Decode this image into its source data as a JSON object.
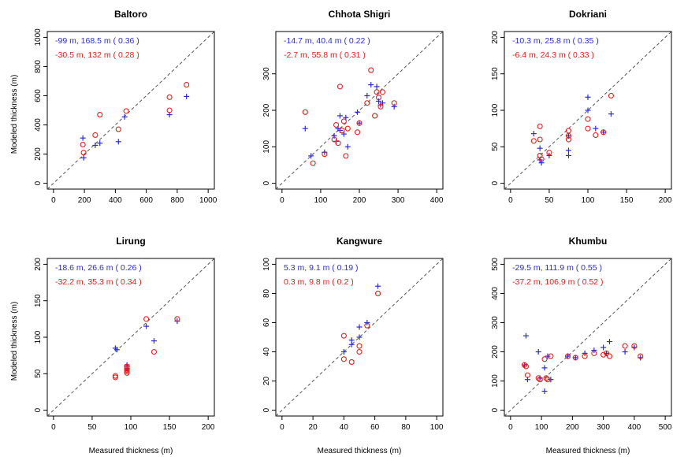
{
  "figure": {
    "xlabel": "Measured thickness (m)",
    "ylabel": "Modeled thickness (m)",
    "colors": {
      "blue": "#2b2bd6",
      "red": "#e02020",
      "axis": "#000000",
      "diagonal": "#555555"
    }
  },
  "chart_data": [
    {
      "type": "scatter",
      "title": "Baltoro",
      "xlim": [
        0,
        1000
      ],
      "ylim": [
        0,
        1000
      ],
      "xticks": [
        0,
        200,
        400,
        600,
        800,
        1000
      ],
      "yticks": [
        0,
        200,
        400,
        600,
        800,
        1000
      ],
      "stats": [
        "-99 m,  168.5 m ( 0.36 )",
        "-30.5 m,  132 m ( 0.28 )"
      ],
      "series": [
        {
          "marker": "plus",
          "color": "#2b2bd6",
          "x": [
            190,
            195,
            270,
            300,
            420,
            460,
            750,
            860
          ],
          "y": [
            310,
            175,
            260,
            275,
            285,
            455,
            470,
            595
          ]
        },
        {
          "marker": "circle",
          "color": "#e02020",
          "x": [
            190,
            195,
            270,
            300,
            420,
            470,
            750,
            750,
            860
          ],
          "y": [
            265,
            210,
            330,
            470,
            370,
            495,
            590,
            500,
            675
          ]
        }
      ]
    },
    {
      "type": "scatter",
      "title": "Chhota Shigri",
      "xlim": [
        0,
        400
      ],
      "ylim": [
        0,
        400
      ],
      "xticks": [
        0,
        100,
        200,
        300,
        400
      ],
      "yticks": [
        0,
        100,
        200,
        300
      ],
      "stats": [
        "-14.7 m,  40.4 m ( 0.22 )",
        "-2.7 m,  55.8 m ( 0.31 )"
      ],
      "series": [
        {
          "marker": "plus",
          "color": "#2b2bd6",
          "x": [
            60,
            75,
            110,
            135,
            140,
            145,
            150,
            150,
            160,
            165,
            170,
            195,
            200,
            220,
            230,
            245,
            250,
            255,
            260,
            290
          ],
          "y": [
            150,
            75,
            85,
            130,
            115,
            150,
            185,
            145,
            135,
            180,
            100,
            195,
            165,
            240,
            270,
            265,
            225,
            215,
            220,
            210
          ]
        },
        {
          "marker": "circle",
          "color": "#e02020",
          "x": [
            60,
            80,
            110,
            135,
            140,
            145,
            150,
            155,
            160,
            165,
            170,
            195,
            200,
            220,
            230,
            240,
            245,
            250,
            255,
            260,
            290
          ],
          "y": [
            195,
            55,
            80,
            120,
            160,
            110,
            265,
            145,
            170,
            75,
            150,
            140,
            165,
            220,
            310,
            185,
            250,
            235,
            210,
            250,
            220
          ]
        }
      ]
    },
    {
      "type": "scatter",
      "title": "Dokriani",
      "xlim": [
        0,
        200
      ],
      "ylim": [
        0,
        200
      ],
      "xticks": [
        0,
        50,
        100,
        150,
        200
      ],
      "yticks": [
        0,
        50,
        100,
        150,
        200
      ],
      "stats": [
        "-10.3 m,  25.8 m ( 0.35 )",
        "-6.4 m,  24.3 m ( 0.33 )"
      ],
      "series": [
        {
          "marker": "plus",
          "color": "#2b2bd6",
          "x": [
            30,
            38,
            38,
            40,
            50,
            75,
            75,
            75,
            100,
            100,
            110,
            120,
            130
          ],
          "y": [
            68,
            48,
            32,
            28,
            38,
            65,
            45,
            38,
            118,
            100,
            75,
            70,
            95
          ]
        },
        {
          "marker": "circle",
          "color": "#e02020",
          "x": [
            30,
            38,
            38,
            38,
            40,
            50,
            75,
            75,
            75,
            100,
            100,
            110,
            120,
            130
          ],
          "y": [
            58,
            78,
            60,
            38,
            33,
            42,
            72,
            65,
            60,
            88,
            75,
            66,
            70,
            120
          ]
        }
      ]
    },
    {
      "type": "scatter",
      "title": "Lirung",
      "xlim": [
        0,
        200
      ],
      "ylim": [
        0,
        200
      ],
      "xticks": [
        0,
        50,
        100,
        150,
        200
      ],
      "yticks": [
        0,
        50,
        100,
        150,
        200
      ],
      "stats": [
        "-18.6 m,  26.6 m ( 0.26 )",
        "-32.2 m,  35.3 m ( 0.34 )"
      ],
      "series": [
        {
          "marker": "plus",
          "color": "#2b2bd6",
          "x": [
            80,
            82,
            95,
            95,
            95,
            95,
            120,
            130,
            160
          ],
          "y": [
            85,
            83,
            62,
            60,
            57,
            55,
            115,
            95,
            122
          ]
        },
        {
          "marker": "circle",
          "color": "#e02020",
          "x": [
            80,
            80,
            95,
            95,
            95,
            95,
            95,
            120,
            130,
            160
          ],
          "y": [
            47,
            45,
            60,
            57,
            55,
            53,
            51,
            125,
            80,
            125
          ]
        }
      ]
    },
    {
      "type": "scatter",
      "title": "Kangwure",
      "xlim": [
        0,
        100
      ],
      "ylim": [
        0,
        100
      ],
      "xticks": [
        0,
        20,
        40,
        60,
        80,
        100
      ],
      "yticks": [
        0,
        20,
        40,
        60,
        80,
        100
      ],
      "stats": [
        "5.3 m,  9.1 m ( 0.19 )",
        "0.3 m,  9.8 m ( 0.2 )"
      ],
      "series": [
        {
          "marker": "plus",
          "color": "#2b2bd6",
          "x": [
            40,
            45,
            45,
            50,
            50,
            55,
            62
          ],
          "y": [
            40,
            48,
            45,
            57,
            50,
            60,
            85
          ]
        },
        {
          "marker": "circle",
          "color": "#e02020",
          "x": [
            40,
            40,
            45,
            50,
            50,
            55,
            62
          ],
          "y": [
            51,
            35,
            33,
            44,
            40,
            58,
            80
          ]
        }
      ]
    },
    {
      "type": "scatter",
      "title": "Khumbu",
      "xlim": [
        0,
        500
      ],
      "ylim": [
        0,
        500
      ],
      "xticks": [
        0,
        100,
        200,
        300,
        400,
        500
      ],
      "yticks": [
        0,
        100,
        200,
        300,
        400,
        500
      ],
      "stats": [
        "-29.5 m,  111.9 m ( 0.55 )",
        "-37.2 m,  106.9 m ( 0.52 )"
      ],
      "series": [
        {
          "marker": "plus",
          "color": "#2b2bd6",
          "x": [
            45,
            50,
            55,
            90,
            95,
            110,
            110,
            120,
            130,
            185,
            210,
            240,
            270,
            300,
            310,
            320,
            370,
            400,
            420
          ],
          "y": [
            155,
            255,
            105,
            200,
            110,
            145,
            65,
            185,
            105,
            185,
            180,
            195,
            205,
            215,
            195,
            235,
            200,
            215,
            180
          ]
        },
        {
          "marker": "circle",
          "color": "#e02020",
          "x": [
            45,
            50,
            55,
            90,
            95,
            110,
            115,
            120,
            130,
            185,
            210,
            240,
            270,
            300,
            310,
            320,
            370,
            400,
            420
          ],
          "y": [
            155,
            150,
            120,
            110,
            105,
            175,
            110,
            105,
            185,
            185,
            180,
            185,
            195,
            190,
            195,
            185,
            220,
            220,
            185
          ]
        }
      ]
    }
  ]
}
